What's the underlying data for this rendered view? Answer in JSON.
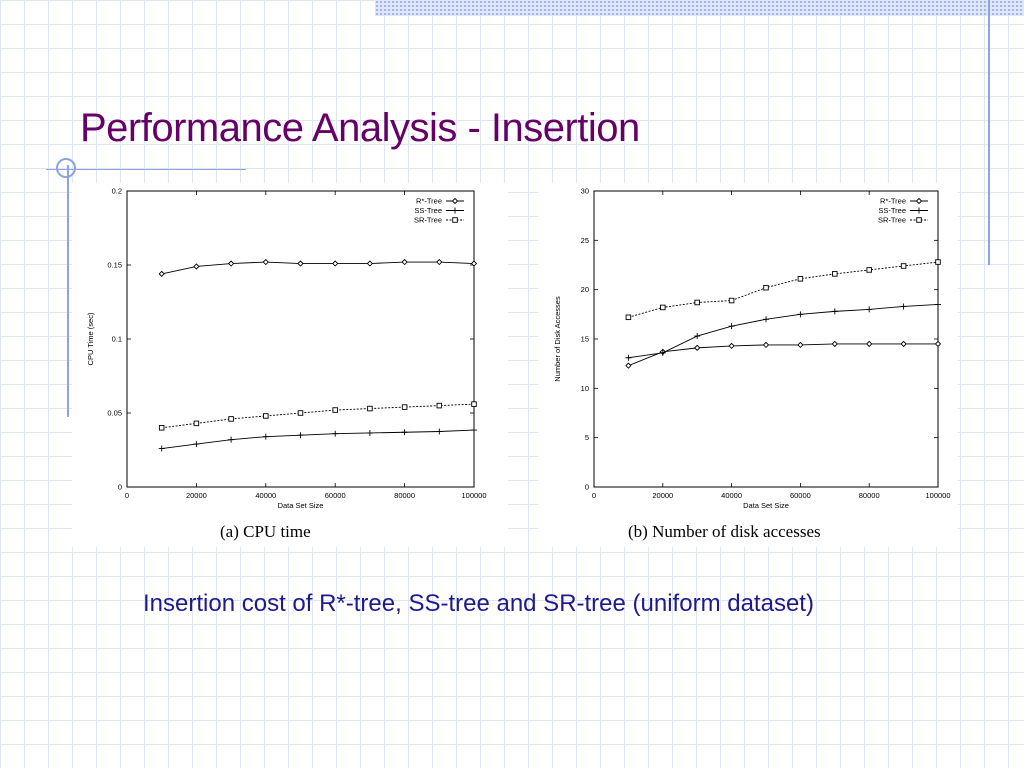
{
  "slide": {
    "title": "Performance Analysis - Insertion",
    "caption": "Insertion cost of R*-tree, SS-tree and SR-tree (uniform dataset)"
  },
  "colors": {
    "title": "#660066",
    "caption": "#1f1a8c",
    "accent": "#8ea4dc"
  },
  "chart_data": [
    {
      "type": "line",
      "subcaption": "(a) CPU time",
      "xlabel": "Data Set Size",
      "ylabel": "CPU Time (sec)",
      "xlim": [
        0,
        100000
      ],
      "ylim": [
        0,
        0.2
      ],
      "xticks": [
        0,
        20000,
        40000,
        60000,
        80000,
        100000
      ],
      "yticks": [
        0,
        0.05,
        0.1,
        0.15,
        0.2
      ],
      "legend_position": "top-right",
      "x": [
        10000,
        20000,
        30000,
        40000,
        50000,
        60000,
        70000,
        80000,
        90000,
        100000
      ],
      "series": [
        {
          "name": "R*-Tree",
          "marker": "diamond",
          "values": [
            0.144,
            0.149,
            0.151,
            0.152,
            0.151,
            0.151,
            0.151,
            0.152,
            0.152,
            0.151
          ]
        },
        {
          "name": "SS-Tree",
          "marker": "plus",
          "values": [
            0.026,
            0.029,
            0.032,
            0.034,
            0.035,
            0.036,
            0.0365,
            0.037,
            0.0375,
            0.0385
          ]
        },
        {
          "name": "SR-Tree",
          "marker": "square",
          "values": [
            0.04,
            0.043,
            0.046,
            0.048,
            0.05,
            0.052,
            0.053,
            0.054,
            0.055,
            0.056
          ]
        }
      ]
    },
    {
      "type": "line",
      "subcaption": "(b) Number of disk accesses",
      "xlabel": "Data Set Size",
      "ylabel": "Number of Disk Accesses",
      "xlim": [
        0,
        100000
      ],
      "ylim": [
        0,
        30
      ],
      "xticks": [
        0,
        20000,
        40000,
        60000,
        80000,
        100000
      ],
      "yticks": [
        0,
        5,
        10,
        15,
        20,
        25,
        30
      ],
      "legend_position": "top-right",
      "x": [
        10000,
        20000,
        30000,
        40000,
        50000,
        60000,
        70000,
        80000,
        90000,
        100000
      ],
      "series": [
        {
          "name": "R*-Tree",
          "marker": "diamond",
          "values": [
            12.3,
            13.7,
            14.1,
            14.3,
            14.4,
            14.4,
            14.5,
            14.5,
            14.5,
            14.5
          ]
        },
        {
          "name": "SS-Tree",
          "marker": "plus",
          "values": [
            13.1,
            13.6,
            15.3,
            16.3,
            17.0,
            17.5,
            17.8,
            18.0,
            18.3,
            18.5
          ]
        },
        {
          "name": "SR-Tree",
          "marker": "square",
          "values": [
            17.2,
            18.2,
            18.7,
            18.9,
            20.2,
            21.1,
            21.6,
            22.0,
            22.4,
            22.8
          ]
        }
      ]
    }
  ]
}
